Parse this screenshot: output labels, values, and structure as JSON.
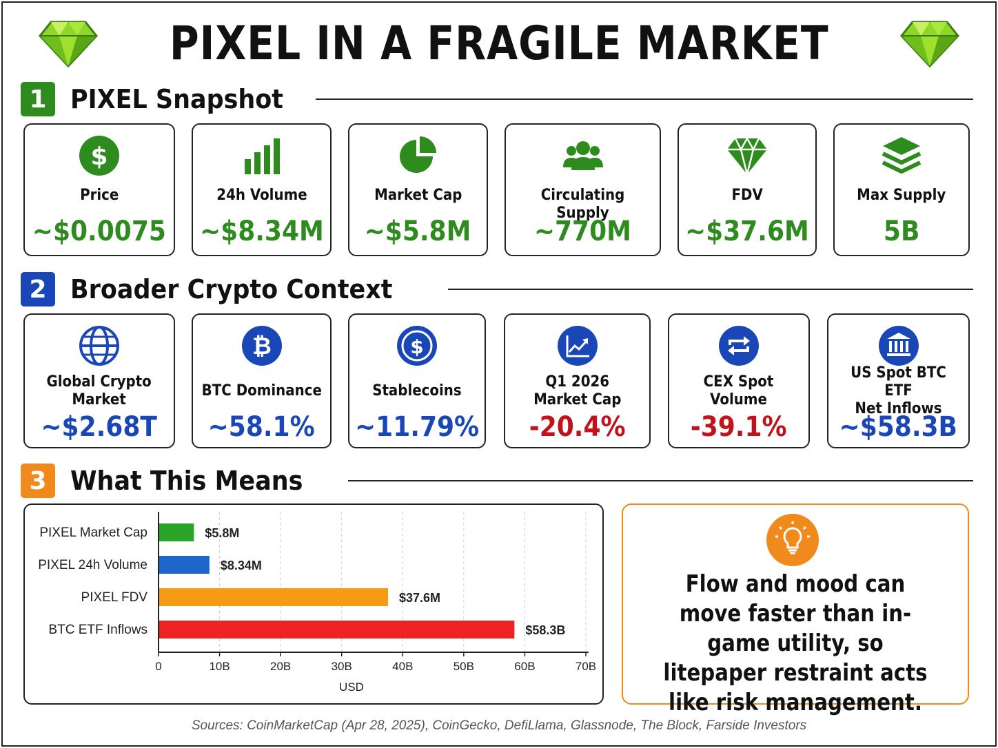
{
  "title": "PIXEL IN A FRAGILE MARKET",
  "colors": {
    "green": "#2e8b1e",
    "blue": "#1a47b8",
    "red": "#c2131c",
    "orange": "#f08a1c"
  },
  "sections": [
    {
      "number": "1",
      "label": "PIXEL Snapshot",
      "color": "#2e8b1e"
    },
    {
      "number": "2",
      "label": "Broader Crypto Context",
      "color": "#1a47b8"
    },
    {
      "number": "3",
      "label": "What This Means",
      "color": "#f08a1c"
    }
  ],
  "snapshot": [
    {
      "icon": "dollar-circle-icon",
      "label": "Price",
      "value": "~$0.0075"
    },
    {
      "icon": "bar-chart-icon",
      "label": "24h Volume",
      "value": "~$8.34M"
    },
    {
      "icon": "pie-chart-icon",
      "label": "Market Cap",
      "value": "~$5.8M"
    },
    {
      "icon": "users-icon",
      "label": "Circulating Supply",
      "value": "~770M"
    },
    {
      "icon": "diamond-icon",
      "label": "FDV",
      "value": "~$37.6M"
    },
    {
      "icon": "layers-icon",
      "label": "Max Supply",
      "value": "5B"
    }
  ],
  "context": [
    {
      "icon": "globe-icon",
      "label": "Global Crypto\nMarket",
      "value": "~$2.68T",
      "tone": "blue"
    },
    {
      "icon": "bitcoin-icon",
      "label": "BTC Dominance",
      "value": "~58.1%",
      "tone": "blue"
    },
    {
      "icon": "dollar-coin-icon",
      "label": "Stablecoins",
      "value": "~11.79%",
      "tone": "blue"
    },
    {
      "icon": "trend-chart-icon",
      "label": "Q1 2026\nMarket Cap",
      "value": "-20.4%",
      "tone": "red"
    },
    {
      "icon": "exchange-icon",
      "label": "CEX Spot\nVolume",
      "value": "-39.1%",
      "tone": "red"
    },
    {
      "icon": "bank-icon",
      "label": "US Spot BTC ETF\nNet Inflows",
      "value": "~$58.3B",
      "tone": "blue"
    }
  ],
  "chart_data": {
    "type": "bar",
    "orientation": "horizontal",
    "categories": [
      "PIXEL Market Cap",
      "PIXEL 24h Volume",
      "PIXEL FDV",
      "BTC ETF Inflows"
    ],
    "values": [
      5.8,
      8.34,
      37.6,
      58.3
    ],
    "value_labels": [
      "$5.8M",
      "$8.34M",
      "$37.6M",
      "$58.3B"
    ],
    "bar_colors": [
      "#2aa52a",
      "#1f66cc",
      "#f79a14",
      "#ee2222"
    ],
    "xlabel": "USD",
    "ylabel": "",
    "xlim": [
      0,
      70
    ],
    "xticks": [
      0,
      10,
      20,
      30,
      40,
      50,
      60,
      70
    ],
    "xtick_labels": [
      "0",
      "10B",
      "20B",
      "30B",
      "40B",
      "50B",
      "60B",
      "70B"
    ],
    "grid": "vertical dashed"
  },
  "insight": {
    "icon": "lightbulb-icon",
    "text": "Flow and mood can move faster than in-game utility, so litepaper restraint acts like risk management."
  },
  "sources": "Sources: CoinMarketCap (Apr 28, 2025), CoinGecko, DefiLlama, Glassnode, The Block, Farside Investors"
}
